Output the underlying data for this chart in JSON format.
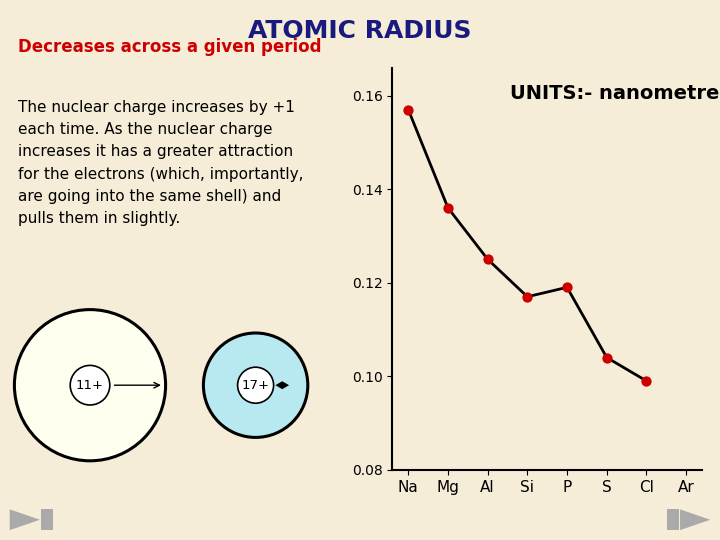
{
  "title": "ATOMIC RADIUS",
  "title_color": "#1a1a7e",
  "title_fontsize": 18,
  "background_color": "#f5edd8",
  "heading_text": "Decreases across a given period",
  "heading_color": "#cc0000",
  "body_text": "The nuclear charge increases by +1\neach time. As the nuclear charge\nincreases it has a greater attraction\nfor the electrons (which, importantly,\nare going into the same shell) and\npulls them in slightly.",
  "body_color": "#000000",
  "elements": [
    "Na",
    "Mg",
    "Al",
    "Si",
    "P",
    "S",
    "Cl",
    "Ar"
  ],
  "radii": [
    0.157,
    0.136,
    0.125,
    0.117,
    0.119,
    0.104,
    0.099,
    null
  ],
  "line_color": "#000000",
  "marker_color": "#cc0000",
  "ylim": [
    0.08,
    0.166
  ],
  "yticks": [
    0.08,
    0.1,
    0.12,
    0.14,
    0.16
  ],
  "units_text": "UNITS:- nanometres",
  "units_fontsize": 14,
  "plot_bg_color": "#f5edd8",
  "atom1_label": "11+",
  "atom2_label": "17+",
  "atom1_fill": "#fffff0",
  "atom2_fill": "#b8e8f0",
  "atom_edge_color": "#000000",
  "nav_color": "#aaaaaa",
  "heading_fontsize": 12,
  "body_fontsize": 11
}
